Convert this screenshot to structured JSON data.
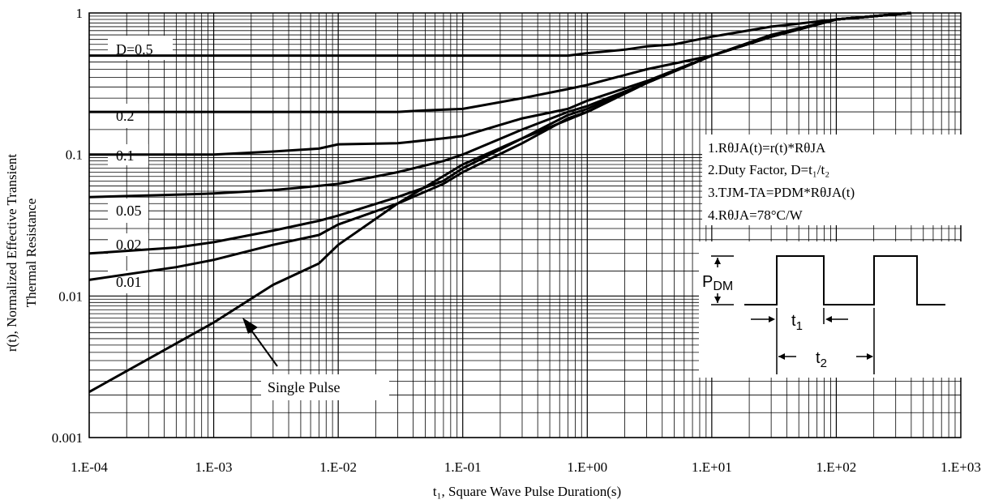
{
  "chart_data": {
    "type": "line",
    "x_scale": "log",
    "y_scale": "log",
    "xlim": [
      0.0001,
      1000
    ],
    "ylim": [
      0.001,
      1
    ],
    "grid": true,
    "xlabel": "t₁, Square Wave Pulse Duration(s)",
    "ylabel_line1": "r(t), Normalized Effective Transient",
    "ylabel_line2": "Thermal Resistance",
    "x_tick_labels": [
      "1.E-04",
      "1.E-03",
      "1.E-02",
      "1.E-01",
      "1.E+00",
      "1.E+01",
      "1.E+02",
      "1.E+03"
    ],
    "y_tick_labels": [
      "0.001",
      "0.01",
      "0.1",
      "1"
    ],
    "series": [
      {
        "name": "D=0.5",
        "x": [
          0.0001,
          0.001,
          0.01,
          0.1,
          0.7,
          1,
          2,
          3,
          5,
          10,
          30,
          100,
          400
        ],
        "y": [
          0.5,
          0.5,
          0.5,
          0.5,
          0.5,
          0.52,
          0.55,
          0.58,
          0.6,
          0.68,
          0.8,
          0.9,
          1
        ]
      },
      {
        "name": "0.2",
        "x": [
          0.0001,
          0.001,
          0.01,
          0.03,
          0.05,
          0.1,
          0.3,
          0.7,
          1,
          3,
          10,
          30,
          100,
          400
        ],
        "y": [
          0.2,
          0.2,
          0.2,
          0.2,
          0.205,
          0.21,
          0.25,
          0.29,
          0.31,
          0.4,
          0.5,
          0.7,
          0.9,
          1
        ]
      },
      {
        "name": "0.1",
        "x": [
          0.0001,
          0.001,
          0.003,
          0.007,
          0.01,
          0.03,
          0.07,
          0.1,
          0.3,
          0.7,
          1,
          3,
          10,
          30,
          100,
          400
        ],
        "y": [
          0.1,
          0.1,
          0.105,
          0.11,
          0.118,
          0.12,
          0.13,
          0.135,
          0.18,
          0.21,
          0.24,
          0.33,
          0.5,
          0.68,
          0.9,
          1
        ]
      },
      {
        "name": "0.05",
        "x": [
          0.0001,
          0.0005,
          0.001,
          0.003,
          0.007,
          0.01,
          0.03,
          0.07,
          0.1,
          0.3,
          0.7,
          1,
          3,
          10,
          30,
          100,
          400
        ],
        "y": [
          0.05,
          0.052,
          0.053,
          0.056,
          0.06,
          0.062,
          0.075,
          0.09,
          0.1,
          0.15,
          0.2,
          0.22,
          0.32,
          0.5,
          0.68,
          0.9,
          1
        ]
      },
      {
        "name": "0.02",
        "x": [
          0.0001,
          0.0005,
          0.001,
          0.003,
          0.007,
          0.01,
          0.03,
          0.07,
          0.1,
          0.3,
          0.7,
          1,
          3,
          10,
          30,
          100,
          400
        ],
        "y": [
          0.02,
          0.022,
          0.024,
          0.029,
          0.034,
          0.037,
          0.05,
          0.065,
          0.08,
          0.13,
          0.19,
          0.21,
          0.32,
          0.5,
          0.68,
          0.9,
          1
        ]
      },
      {
        "name": "0.01",
        "x": [
          0.0001,
          0.0005,
          0.001,
          0.003,
          0.007,
          0.01,
          0.03,
          0.07,
          0.1,
          0.3,
          0.7,
          1,
          3,
          10,
          30,
          100,
          400
        ],
        "y": [
          0.013,
          0.016,
          0.018,
          0.023,
          0.027,
          0.032,
          0.045,
          0.062,
          0.075,
          0.12,
          0.18,
          0.2,
          0.32,
          0.5,
          0.68,
          0.9,
          1
        ]
      },
      {
        "name": "Single Pulse",
        "x": [
          0.0001,
          0.0003,
          0.001,
          0.003,
          0.007,
          0.01,
          0.03,
          0.1,
          0.3,
          1,
          3,
          10,
          30,
          100,
          400
        ],
        "y": [
          0.0021,
          0.0036,
          0.0065,
          0.012,
          0.017,
          0.023,
          0.045,
          0.085,
          0.13,
          0.2,
          0.32,
          0.5,
          0.68,
          0.9,
          1
        ]
      }
    ],
    "notes": [
      "1.RθJA(t)=r(t)*RθJA",
      "2.Duty Factor, D=t₁/t₂",
      "3.TJM-TA=PDM*RθJA(t)",
      "4.RθJA=78°C/W"
    ],
    "pulse_diagram": {
      "pdm_label": "P",
      "pdm_sub": "DM",
      "t1_label": "t",
      "t1_sub": "1",
      "t2_label": "t",
      "t2_sub": "2"
    }
  }
}
